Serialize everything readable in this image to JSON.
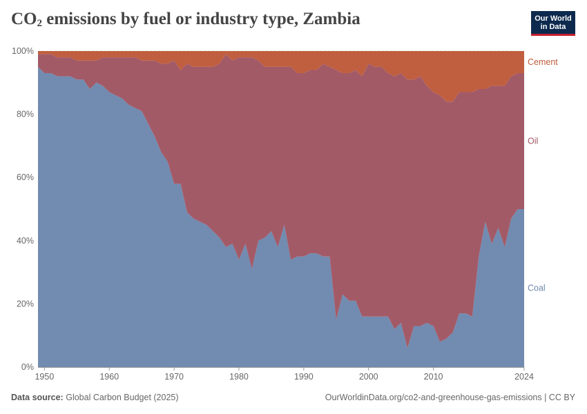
{
  "title_main": "CO",
  "title_sub": "2",
  "title_rest": " emissions by fuel or industry type, Zambia",
  "logo": {
    "line1": "Our World",
    "line2": "in Data"
  },
  "footer": {
    "source_label": "Data source:",
    "source_value": "Global Carbon Budget (2025)",
    "url": "OurWorldinData.org/co2-and-greenhouse-gas-emissions",
    "license": "CC BY"
  },
  "colors": {
    "coal": "#6d87ad",
    "oil": "#a05562",
    "cement": "#be5a39",
    "text": "#666666"
  },
  "chart_data": {
    "type": "area",
    "stacked": "percent",
    "x": [
      1949,
      1950,
      1951,
      1952,
      1953,
      1954,
      1955,
      1956,
      1957,
      1958,
      1959,
      1960,
      1961,
      1962,
      1963,
      1964,
      1965,
      1966,
      1967,
      1968,
      1969,
      1970,
      1971,
      1972,
      1973,
      1974,
      1975,
      1976,
      1977,
      1978,
      1979,
      1980,
      1981,
      1982,
      1983,
      1984,
      1985,
      1986,
      1987,
      1988,
      1989,
      1990,
      1991,
      1992,
      1993,
      1994,
      1995,
      1996,
      1997,
      1998,
      1999,
      2000,
      2001,
      2002,
      2003,
      2004,
      2005,
      2006,
      2007,
      2008,
      2009,
      2010,
      2011,
      2012,
      2013,
      2014,
      2015,
      2016,
      2017,
      2018,
      2019,
      2020,
      2021,
      2022,
      2023,
      2024
    ],
    "series": [
      {
        "name": "Coal",
        "values": [
          95,
          93,
          93,
          92,
          92,
          92,
          91,
          91,
          88,
          90,
          89,
          87,
          86,
          85,
          83,
          82,
          81,
          77,
          73,
          68,
          65,
          58,
          58,
          49,
          47,
          46,
          45,
          43,
          41,
          38,
          39,
          34,
          39,
          31,
          40,
          41,
          43,
          38,
          45,
          34,
          35,
          35,
          36,
          36,
          35,
          35,
          15,
          23,
          21,
          21,
          16,
          16,
          16,
          16,
          16,
          12,
          14,
          6,
          13,
          13,
          14,
          13,
          8,
          9,
          11,
          17,
          17,
          16,
          35,
          46,
          39,
          44,
          38,
          47,
          50,
          50
        ]
      },
      {
        "name": "Oil",
        "values": [
          4,
          6,
          6,
          6,
          6,
          6,
          6,
          6,
          9,
          7,
          9,
          11,
          12,
          13,
          15,
          16,
          16,
          20,
          24,
          28,
          31,
          39,
          36,
          47,
          48,
          49,
          50,
          52,
          55,
          61,
          58,
          64,
          59,
          67,
          57,
          54,
          52,
          57,
          50,
          61,
          58,
          58,
          58,
          58,
          61,
          60,
          79,
          70,
          72,
          73,
          76,
          80,
          79,
          79,
          77,
          80,
          79,
          85,
          78,
          79,
          75,
          74,
          78,
          75,
          73,
          70,
          70,
          71,
          53,
          42,
          50,
          45,
          51,
          45,
          43,
          43
        ]
      },
      {
        "name": "Cement",
        "values": [
          1,
          1,
          1,
          2,
          2,
          2,
          3,
          3,
          3,
          3,
          2,
          2,
          2,
          2,
          2,
          2,
          3,
          3,
          3,
          4,
          4,
          3,
          6,
          4,
          5,
          5,
          5,
          5,
          4,
          1,
          3,
          2,
          2,
          2,
          3,
          5,
          5,
          5,
          5,
          5,
          7,
          7,
          6,
          6,
          4,
          5,
          6,
          7,
          7,
          6,
          8,
          4,
          5,
          5,
          7,
          8,
          7,
          9,
          9,
          8,
          11,
          13,
          14,
          16,
          16,
          13,
          13,
          13,
          12,
          12,
          11,
          11,
          11,
          8,
          7,
          7
        ]
      }
    ],
    "ylim": [
      0,
      100
    ],
    "yticks": [
      "0%",
      "20%",
      "40%",
      "60%",
      "80%",
      "100%"
    ],
    "xticks": [
      "1950",
      "1960",
      "1970",
      "1980",
      "1990",
      "2000",
      "2010",
      "2024"
    ],
    "legend_position": "right, at each series end"
  }
}
